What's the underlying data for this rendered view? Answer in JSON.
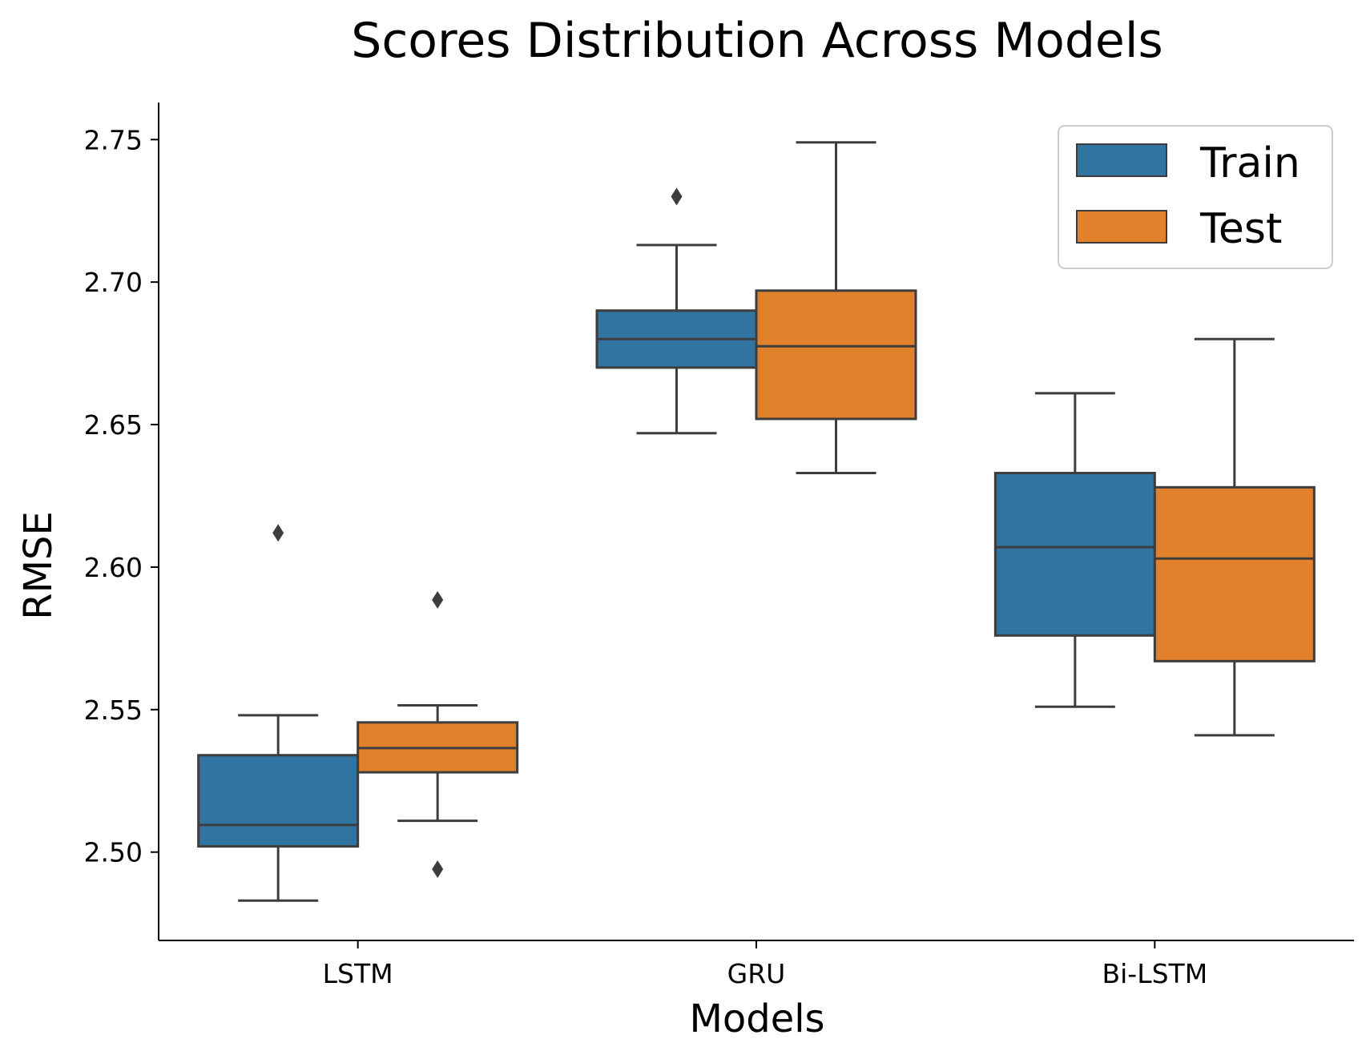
{
  "chart_data": {
    "type": "box",
    "title": "Scores Distribution Across Models",
    "xlabel": "Models",
    "ylabel": "RMSE",
    "categories": [
      "LSTM",
      "GRU",
      "Bi-LSTM"
    ],
    "ylim": [
      2.469,
      2.763
    ],
    "yticks": [
      2.5,
      2.55,
      2.6,
      2.65,
      2.7,
      2.75
    ],
    "ytick_labels": [
      "2.50",
      "2.55",
      "2.60",
      "2.65",
      "2.70",
      "2.75"
    ],
    "grid": false,
    "legend_position": "top-right",
    "series": [
      {
        "name": "Train",
        "color": "#3274a1",
        "boxes": [
          {
            "whisker_low": 2.483,
            "q1": 2.502,
            "median": 2.5095,
            "q3": 2.534,
            "whisker_high": 2.548,
            "outliers": [
              2.612
            ]
          },
          {
            "whisker_low": 2.647,
            "q1": 2.67,
            "median": 2.68,
            "q3": 2.69,
            "whisker_high": 2.713,
            "outliers": [
              2.73
            ]
          },
          {
            "whisker_low": 2.551,
            "q1": 2.576,
            "median": 2.607,
            "q3": 2.633,
            "whisker_high": 2.661,
            "outliers": []
          }
        ]
      },
      {
        "name": "Test",
        "color": "#e1812c",
        "boxes": [
          {
            "whisker_low": 2.511,
            "q1": 2.528,
            "median": 2.5365,
            "q3": 2.5455,
            "whisker_high": 2.5515,
            "outliers": [
              2.5885,
              2.494
            ]
          },
          {
            "whisker_low": 2.633,
            "q1": 2.652,
            "median": 2.6775,
            "q3": 2.697,
            "whisker_high": 2.749,
            "outliers": []
          },
          {
            "whisker_low": 2.541,
            "q1": 2.567,
            "median": 2.603,
            "q3": 2.628,
            "whisker_high": 2.68,
            "outliers": []
          }
        ]
      }
    ]
  },
  "styles": {
    "line_color": "#3d3d3d",
    "axis_color": "#000000",
    "legend_border": "#cccccc"
  }
}
